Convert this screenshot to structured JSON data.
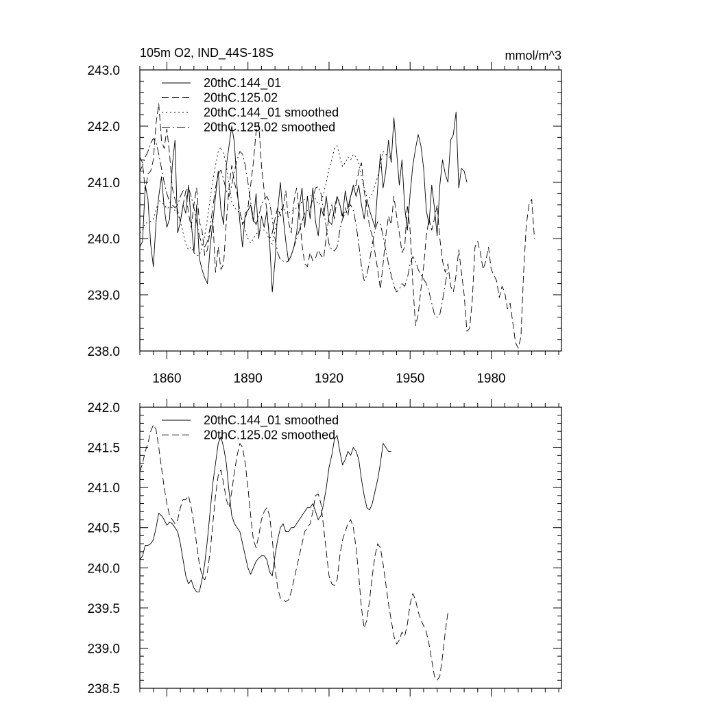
{
  "figure": {
    "title": "105m O2, IND_44S-18S",
    "units": "mmol/m^3"
  },
  "chart_data": [
    {
      "type": "line",
      "panel": "top",
      "title": "105m O2, IND_44S-18S",
      "units_label": "mmol/m^3",
      "xlabel": "",
      "ylabel": "",
      "xlim": [
        1850,
        2006
      ],
      "ylim": [
        238.0,
        243.0
      ],
      "xticks": [
        1860,
        1890,
        1920,
        1950,
        1980
      ],
      "xtick_labels": [
        "1860",
        "1890",
        "1920",
        "1950",
        "1980"
      ],
      "yticks": [
        238.0,
        239.0,
        240.0,
        241.0,
        242.0,
        243.0
      ],
      "ytick_labels": [
        "238.0",
        "239.0",
        "240.0",
        "241.0",
        "242.0",
        "243.0"
      ],
      "legend_position": "top-left",
      "series": [
        {
          "name": "20thC.144_01",
          "dash": "solid",
          "x_start": 1850,
          "values": [
            239.85,
            239.95,
            240.95,
            240.7,
            239.9,
            239.5,
            240.3,
            240.75,
            241.1,
            240.55,
            240.2,
            240.35,
            241.3,
            241.75,
            240.1,
            240.3,
            240.6,
            240.45,
            240.95,
            240.3,
            239.75,
            240.6,
            239.65,
            239.45,
            239.3,
            239.2,
            239.85,
            240.3,
            240.75,
            241.2,
            240.5,
            240.25,
            241.3,
            241.65,
            242.0,
            241.7,
            240.9,
            240.3,
            239.85,
            240.45,
            240.5,
            240.6,
            240.3,
            240.8,
            240.0,
            240.4,
            240.2,
            240.5,
            239.95,
            239.05,
            239.6,
            240.5,
            241.0,
            240.4,
            239.95,
            239.6,
            239.7,
            239.85,
            240.1,
            240.55,
            240.9,
            240.2,
            240.75,
            240.35,
            240.9,
            240.3,
            240.05,
            240.55,
            240.4,
            240.75,
            240.3,
            240.25,
            240.55,
            240.75,
            240.6,
            240.4,
            240.85,
            240.55,
            240.75,
            240.95,
            240.75,
            240.95,
            240.6,
            240.35,
            240.7,
            240.5,
            240.35,
            240.2,
            240.9,
            241.5,
            240.9,
            241.2,
            241.75,
            241.35,
            242.15,
            241.55,
            240.95,
            241.4,
            240.55,
            240.15,
            240.8,
            241.3,
            241.6,
            241.85,
            241.65,
            241.25,
            240.5,
            240.25,
            240.95,
            240.55,
            240.05,
            240.95,
            241.4,
            241.15,
            241.0,
            241.75,
            241.85,
            242.25,
            240.9,
            241.25,
            241.2,
            241.0
          ]
        },
        {
          "name": "20thC.125.02",
          "dash": "10,5",
          "x_start": 1850,
          "values": [
            241.45,
            241.35,
            240.85,
            241.15,
            241.2,
            241.4,
            242.05,
            242.4,
            241.75,
            241.6,
            241.95,
            241.5,
            240.9,
            240.7,
            240.5,
            240.3,
            240.6,
            240.85,
            240.45,
            240.2,
            240.6,
            240.9,
            240.3,
            240.15,
            239.7,
            239.8,
            240.15,
            240.35,
            239.4,
            239.85,
            239.45,
            239.55,
            240.3,
            240.9,
            241.3,
            241.0,
            240.8,
            240.5,
            240.25,
            240.35,
            240.55,
            240.95,
            241.35,
            241.9,
            242.05,
            241.3,
            240.85,
            240.5,
            240.0,
            240.1,
            240.35,
            240.55,
            240.4,
            240.55,
            240.85,
            240.3,
            240.1,
            240.65,
            240.9,
            240.45,
            239.9,
            239.55,
            239.5,
            239.75,
            239.6,
            239.65,
            239.8,
            239.7,
            239.65,
            240.05,
            240.4,
            240.6,
            240.35,
            240.75,
            240.6,
            240.35,
            240.55,
            240.4,
            240.75,
            240.9,
            240.95,
            241.2,
            241.35,
            240.85,
            240.55,
            240.2,
            240.05,
            239.75,
            239.45,
            239.1,
            239.55,
            240.05,
            240.4,
            240.25,
            240.75,
            240.4,
            240.1,
            239.75,
            239.85,
            240.6,
            240.15,
            239.2,
            238.45,
            238.65,
            239.1,
            239.5,
            240.05,
            240.35,
            240.15,
            240.35,
            240.6,
            240.0,
            239.6,
            239.4,
            239.55,
            239.15,
            239.05,
            239.35,
            239.8,
            239.4,
            239.0,
            238.35,
            238.4,
            238.9,
            239.85,
            239.95,
            239.75,
            239.45,
            239.6,
            239.85,
            239.45,
            239.35,
            239.25,
            238.95,
            239.15,
            239.05,
            238.75,
            238.85,
            238.5,
            238.15,
            238.05,
            238.25,
            239.4,
            240.25,
            240.6,
            240.7,
            240.0
          ]
        },
        {
          "name": "20thC.144_01 smoothed",
          "dash": "2,4",
          "x_start": 1850,
          "values": [
            240.1,
            240.15,
            240.28,
            240.28,
            240.3,
            240.35,
            240.5,
            240.68,
            240.65,
            240.6,
            240.53,
            240.57,
            240.55,
            240.5,
            240.45,
            240.3,
            240.1,
            239.9,
            239.8,
            239.85,
            239.75,
            239.7,
            239.7,
            239.85,
            240.05,
            240.35,
            240.7,
            241.05,
            241.3,
            241.55,
            241.63,
            241.5,
            241.3,
            240.95,
            240.65,
            240.55,
            240.5,
            240.45,
            240.3,
            240.15,
            240.0,
            239.92,
            240.0,
            240.08,
            240.12,
            240.15,
            240.15,
            240.1,
            239.95,
            239.9,
            240.15,
            240.35,
            240.5,
            240.55,
            240.45,
            240.45,
            240.5,
            240.5,
            240.55,
            240.6,
            240.65,
            240.7,
            240.75,
            240.75,
            240.8,
            240.7,
            240.6,
            240.65,
            240.8,
            241.0,
            241.25,
            241.4,
            241.6,
            241.65,
            241.45,
            241.28,
            241.35,
            241.45,
            241.4,
            241.5,
            241.45,
            241.35,
            241.1,
            240.9,
            240.75,
            240.72,
            240.8,
            240.95,
            241.1,
            241.3,
            241.55,
            241.5,
            241.45,
            241.45
          ]
        },
        {
          "name": "20thC.125.02 smoothed",
          "dash": "12,4,2,4",
          "x_start": 1850,
          "values": [
            241.2,
            241.3,
            241.45,
            241.55,
            241.7,
            241.78,
            241.72,
            241.5,
            241.25,
            241.0,
            240.8,
            240.65,
            240.6,
            240.55,
            240.6,
            240.75,
            240.85,
            240.85,
            240.9,
            240.75,
            240.55,
            240.3,
            240.05,
            239.9,
            239.85,
            239.95,
            240.2,
            240.55,
            240.9,
            241.15,
            241.22,
            241.05,
            240.85,
            240.75,
            240.95,
            241.2,
            241.4,
            241.55,
            241.5,
            241.3,
            241.0,
            240.65,
            240.35,
            240.25,
            240.4,
            240.6,
            240.7,
            240.75,
            240.65,
            240.35,
            240.0,
            239.75,
            239.62,
            239.6,
            239.58,
            239.6,
            239.7,
            239.85,
            240.0,
            240.15,
            240.3,
            240.45,
            240.5,
            240.55,
            240.7,
            240.9,
            240.92,
            240.8,
            240.5,
            240.2,
            239.9,
            239.8,
            239.78,
            239.85,
            240.15,
            240.35,
            240.45,
            240.55,
            240.6,
            240.5,
            240.25,
            239.9,
            239.5,
            239.25,
            239.35,
            239.6,
            239.9,
            240.15,
            240.3,
            240.25,
            240.05,
            239.8,
            239.55,
            239.35,
            239.15,
            239.05,
            239.1,
            239.2,
            239.15,
            239.3,
            239.55,
            239.68,
            239.6,
            239.45,
            239.35,
            239.28,
            239.2,
            239.05,
            238.85,
            238.65,
            238.6,
            238.65,
            238.9,
            239.2,
            239.45
          ]
        }
      ]
    },
    {
      "type": "line",
      "panel": "bottom",
      "title": "",
      "xlabel": "",
      "ylabel": "",
      "xlim": [
        1850,
        2006
      ],
      "ylim": [
        238.5,
        242.0
      ],
      "xticks": [
        1860,
        1890,
        1920,
        1950,
        1980
      ],
      "xtick_labels": [],
      "yticks": [
        238.5,
        239.0,
        239.5,
        240.0,
        240.5,
        241.0,
        241.5,
        242.0
      ],
      "ytick_labels": [
        "238.5",
        "239.0",
        "239.5",
        "240.0",
        "240.5",
        "241.0",
        "241.5",
        "242.0"
      ],
      "legend_position": "top-left",
      "series": [
        {
          "name": "20thC.144_01 smoothed",
          "dash": "solid",
          "x_start": 1850,
          "values": [
            240.1,
            240.15,
            240.28,
            240.28,
            240.3,
            240.35,
            240.5,
            240.68,
            240.65,
            240.6,
            240.53,
            240.57,
            240.55,
            240.5,
            240.45,
            240.3,
            240.1,
            239.9,
            239.8,
            239.85,
            239.75,
            239.7,
            239.7,
            239.85,
            240.05,
            240.35,
            240.7,
            241.05,
            241.3,
            241.55,
            241.63,
            241.5,
            241.3,
            240.95,
            240.65,
            240.55,
            240.5,
            240.45,
            240.3,
            240.15,
            240.0,
            239.92,
            240.0,
            240.08,
            240.12,
            240.15,
            240.15,
            240.1,
            239.95,
            239.9,
            240.15,
            240.35,
            240.5,
            240.55,
            240.45,
            240.45,
            240.5,
            240.5,
            240.55,
            240.6,
            240.65,
            240.7,
            240.75,
            240.75,
            240.8,
            240.7,
            240.6,
            240.65,
            240.8,
            241.0,
            241.25,
            241.4,
            241.6,
            241.65,
            241.45,
            241.28,
            241.35,
            241.45,
            241.4,
            241.5,
            241.45,
            241.35,
            241.1,
            240.9,
            240.75,
            240.72,
            240.8,
            240.95,
            241.1,
            241.3,
            241.55,
            241.5,
            241.45,
            241.45
          ]
        },
        {
          "name": "20thC.125.02 smoothed",
          "dash": "10,5",
          "x_start": 1850,
          "values": [
            241.2,
            241.3,
            241.45,
            241.55,
            241.7,
            241.78,
            241.72,
            241.5,
            241.25,
            241.0,
            240.8,
            240.65,
            240.6,
            240.55,
            240.6,
            240.75,
            240.85,
            240.85,
            240.9,
            240.75,
            240.55,
            240.3,
            240.05,
            239.9,
            239.85,
            239.95,
            240.2,
            240.55,
            240.9,
            241.15,
            241.22,
            241.05,
            240.85,
            240.75,
            240.95,
            241.2,
            241.4,
            241.55,
            241.5,
            241.3,
            241.0,
            240.65,
            240.35,
            240.25,
            240.4,
            240.6,
            240.7,
            240.75,
            240.65,
            240.35,
            240.0,
            239.75,
            239.62,
            239.6,
            239.58,
            239.6,
            239.7,
            239.85,
            240.0,
            240.15,
            240.3,
            240.45,
            240.5,
            240.55,
            240.7,
            240.9,
            240.92,
            240.8,
            240.5,
            240.2,
            239.9,
            239.8,
            239.78,
            239.85,
            240.15,
            240.35,
            240.45,
            240.55,
            240.6,
            240.5,
            240.25,
            239.9,
            239.5,
            239.25,
            239.35,
            239.6,
            239.9,
            240.15,
            240.3,
            240.25,
            240.05,
            239.8,
            239.55,
            239.35,
            239.15,
            239.05,
            239.1,
            239.2,
            239.15,
            239.3,
            239.55,
            239.68,
            239.6,
            239.45,
            239.35,
            239.28,
            239.2,
            239.05,
            238.85,
            238.65,
            238.6,
            238.65,
            238.9,
            239.2,
            239.45
          ]
        }
      ]
    }
  ]
}
